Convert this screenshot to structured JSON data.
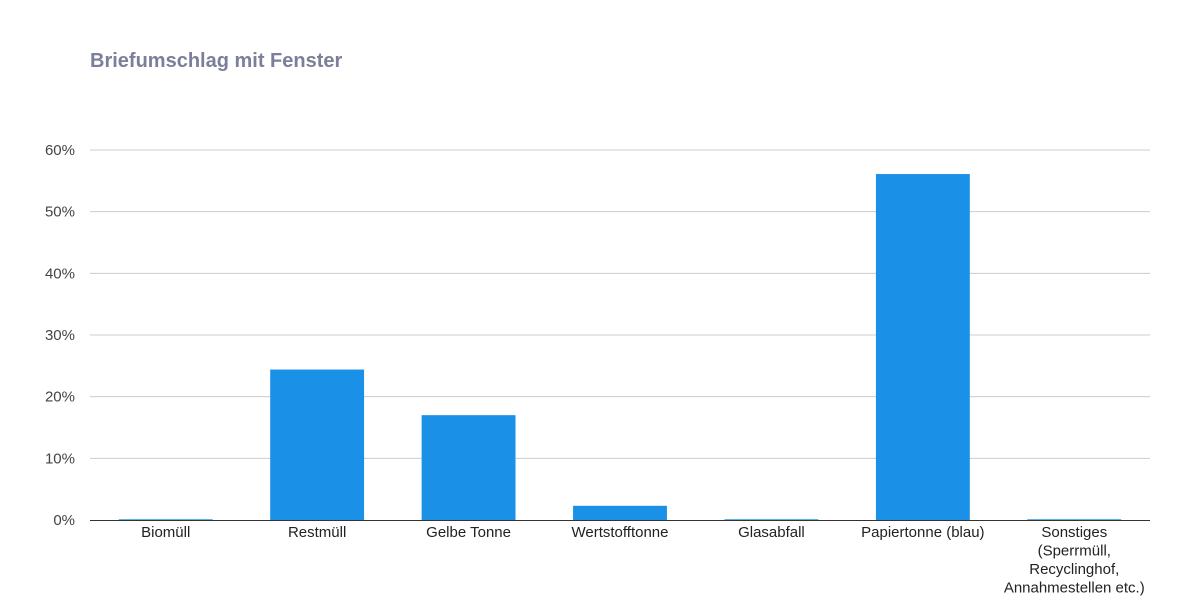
{
  "chart_data": {
    "type": "bar",
    "title": "Briefumschlag mit Fenster",
    "xlabel": "",
    "ylabel": "",
    "categories": [
      "Biomüll",
      "Restmüll",
      "Gelbe Tonne",
      "Wertstofftonne",
      "Glasabfall",
      "Papiertonne (blau)",
      "Sonstiges (Sperrmüll, Recyclinghof, Annahmestellen etc.)"
    ],
    "category_lines": [
      [
        "Biomüll"
      ],
      [
        "Restmüll"
      ],
      [
        "Gelbe Tonne"
      ],
      [
        "Wertstofftonne"
      ],
      [
        "Glasabfall"
      ],
      [
        "Papiertonne (blau)"
      ],
      [
        "Sonstiges",
        "(Sperrmüll,",
        "Recyclinghof,",
        "Annahmestellen etc.)"
      ]
    ],
    "values": [
      0,
      24.4,
      17,
      2.3,
      0,
      56.1,
      0
    ],
    "ylim": [
      0,
      60
    ],
    "yticks": [
      0,
      10,
      20,
      30,
      40,
      50,
      60
    ],
    "ytick_labels": [
      "0%",
      "10%",
      "20%",
      "30%",
      "40%",
      "50%",
      "60%"
    ],
    "grid": true,
    "legend": "none",
    "bar_color": "#1a91e6",
    "zero_bar_color": "#5bb3ee"
  }
}
